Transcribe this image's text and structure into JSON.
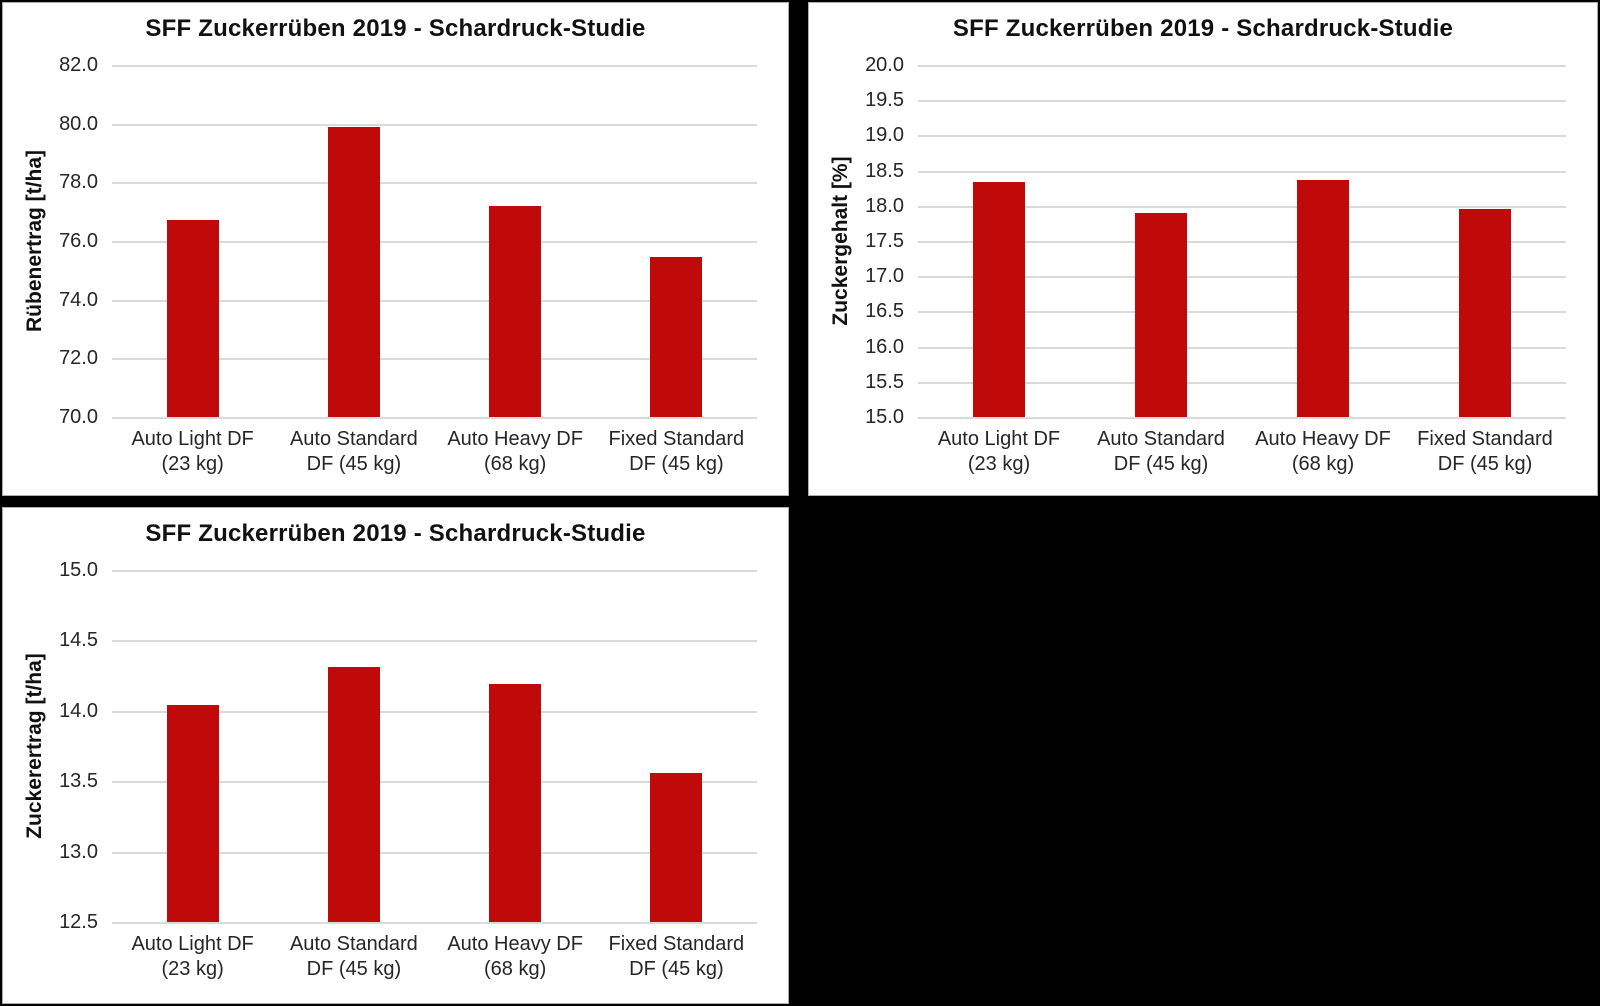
{
  "figure": {
    "background_color": "#000000",
    "panel_background_color": "#ffffff",
    "panel_border_color": "#aeaeae",
    "text_color": "#262626",
    "title_color": "#111111"
  },
  "chart_data": [
    {
      "type": "bar",
      "title": "SFF Zuckerrüben 2019 - Schardruck-Studie",
      "ylabel": "Rübenertrag [t/ha]",
      "xlabel": "",
      "categories": [
        "Auto Light DF\n(23 kg)",
        "Auto Standard\nDF (45 kg)",
        "Auto Heavy DF\n(68 kg)",
        "Fixed Standard\nDF (45 kg)"
      ],
      "values": [
        76.7,
        79.9,
        77.2,
        75.45
      ],
      "ylim": [
        70.0,
        82.0
      ],
      "ytick_step": 2.0,
      "yticks": [
        "70.0",
        "72.0",
        "74.0",
        "76.0",
        "78.0",
        "80.0",
        "82.0"
      ],
      "bar_color": "#C00A0A",
      "gridline_color": "#DADADA",
      "grid": true,
      "legend": "none"
    },
    {
      "type": "bar",
      "title": "SFF Zuckerrüben 2019 - Schardruck-Studie",
      "ylabel": "Zuckergehalt [%]",
      "xlabel": "",
      "categories": [
        "Auto Light DF\n(23 kg)",
        "Auto Standard\nDF (45 kg)",
        "Auto Heavy DF\n(68 kg)",
        "Fixed Standard\nDF (45 kg)"
      ],
      "values": [
        18.34,
        17.9,
        18.37,
        17.96
      ],
      "ylim": [
        15.0,
        20.0
      ],
      "ytick_step": 0.5,
      "yticks": [
        "15.0",
        "15.5",
        "16.0",
        "16.5",
        "17.0",
        "17.5",
        "18.0",
        "18.5",
        "19.0",
        "19.5",
        "20.0"
      ],
      "bar_color": "#C00A0A",
      "gridline_color": "#DADADA",
      "grid": true,
      "legend": "none"
    },
    {
      "type": "bar",
      "title": "SFF Zuckerrüben 2019 - Schardruck-Studie",
      "ylabel": "Zuckerertrag [t/ha]",
      "xlabel": "",
      "categories": [
        "Auto Light DF\n(23 kg)",
        "Auto Standard\nDF (45 kg)",
        "Auto Heavy DF\n(68 kg)",
        "Fixed Standard\nDF (45 kg)"
      ],
      "values": [
        14.04,
        14.31,
        14.19,
        13.56
      ],
      "ylim": [
        12.5,
        15.0
      ],
      "ytick_step": 0.5,
      "yticks": [
        "12.5",
        "13.0",
        "13.5",
        "14.0",
        "14.5",
        "15.0"
      ],
      "bar_color": "#C00A0A",
      "gridline_color": "#DADADA",
      "grid": true,
      "legend": "none"
    }
  ]
}
